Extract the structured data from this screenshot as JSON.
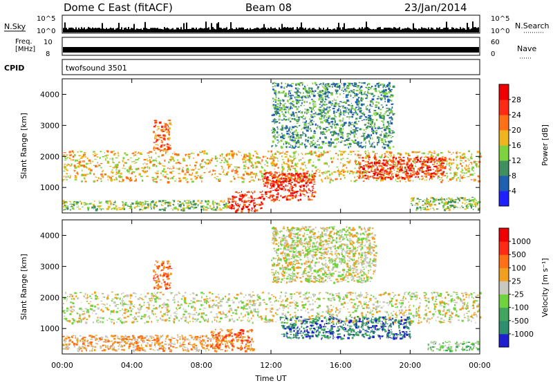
{
  "header": {
    "station": "Dome C East (fitACF)",
    "beam": "Beam 08",
    "date": "23/Jan/2014"
  },
  "strip_labels": {
    "nsky": "N.Sky",
    "nsky_top": "10^5",
    "nsky_bottom": "10^0",
    "nsearch": "N.Search",
    "nsearch_top": "10^5",
    "nsearch_bottom": "10^0",
    "freq_line1": "Freq.",
    "freq_line2": "[MHz]",
    "freq_top": "10",
    "freq_bottom": "8",
    "nave": "Nave",
    "nave_top": "60",
    "nave_bottom": "0",
    "cpid": "CPID",
    "cpid_value": "twofsound 3501"
  },
  "chart_data": [
    {
      "type": "heatmap",
      "name": "power",
      "ylabel": "Slant Range [km]",
      "yticks": [
        1000,
        2000,
        3000,
        4000
      ],
      "ylim": [
        180,
        4500
      ],
      "xticks": [
        "00:00",
        "04:00",
        "08:00",
        "12:00",
        "16:00",
        "20:00",
        "00:00"
      ],
      "xlim_hours": [
        0,
        24
      ],
      "colorbar": {
        "label": "Power [dB]",
        "levels": [
          "4",
          "8",
          "12",
          "16",
          "20",
          "24",
          "28"
        ],
        "colors": [
          "#1f1fff",
          "#1f5fb0",
          "#3f8f5f",
          "#7fd23f",
          "#f0b41e",
          "#ff6f16",
          "#ff2a14",
          "#ee0000"
        ]
      },
      "regions": [
        {
          "t0": 0.0,
          "t1": 24.0,
          "r0": 1200,
          "r1": 2200,
          "level": 4
        },
        {
          "t0": 0.0,
          "t1": 9.5,
          "r0": 300,
          "r1": 600,
          "level": 3
        },
        {
          "t0": 5.2,
          "t1": 6.2,
          "r0": 2200,
          "r1": 3200,
          "level": 5
        },
        {
          "t0": 9.5,
          "t1": 11.5,
          "r0": 250,
          "r1": 900,
          "level": 6
        },
        {
          "t0": 11.5,
          "t1": 14.5,
          "r0": 600,
          "r1": 1500,
          "level": 6
        },
        {
          "t0": 12.0,
          "t1": 19.0,
          "r0": 2300,
          "r1": 4400,
          "level": 2
        },
        {
          "t0": 17.0,
          "t1": 22.0,
          "r0": 1300,
          "r1": 2000,
          "level": 6
        },
        {
          "t0": 20.0,
          "t1": 24.0,
          "r0": 300,
          "r1": 700,
          "level": 3
        }
      ]
    },
    {
      "type": "heatmap",
      "name": "velocity",
      "ylabel": "Slant Range [km]",
      "yticks": [
        1000,
        2000,
        3000,
        4000
      ],
      "ylim": [
        180,
        4500
      ],
      "xticks": [
        "00:00",
        "04:00",
        "08:00",
        "12:00",
        "16:00",
        "20:00",
        "00:00"
      ],
      "xlim_hours": [
        0,
        24
      ],
      "xlabel": "Time UT",
      "colorbar": {
        "label": "Velocity [m s⁻¹]",
        "levels": [
          "1000",
          "500",
          "100",
          "25",
          "-25",
          "-100",
          "-500",
          "-1000"
        ],
        "colors": [
          "#1f1fd0",
          "#2e8f6f",
          "#3fa55f",
          "#6fd23f",
          "#c8c8c0",
          "#f0a01e",
          "#ff6f16",
          "#ff2a14",
          "#ee0000"
        ]
      },
      "regions": [
        {
          "t0": 0.0,
          "t1": 24.0,
          "r0": 1200,
          "r1": 2200,
          "level": 4
        },
        {
          "t0": 0.0,
          "t1": 9.0,
          "r0": 300,
          "r1": 800,
          "level": 5
        },
        {
          "t0": 5.2,
          "t1": 6.2,
          "r0": 2300,
          "r1": 3200,
          "level": 6
        },
        {
          "t0": 8.5,
          "t1": 11.0,
          "r0": 300,
          "r1": 1000,
          "level": 6
        },
        {
          "t0": 12.5,
          "t1": 20.0,
          "r0": 700,
          "r1": 1400,
          "level": 1
        },
        {
          "t0": 12.0,
          "t1": 18.0,
          "r0": 2500,
          "r1": 4300,
          "level": 4
        },
        {
          "t0": 21.0,
          "t1": 24.0,
          "r0": 300,
          "r1": 600,
          "level": 3
        }
      ]
    }
  ]
}
